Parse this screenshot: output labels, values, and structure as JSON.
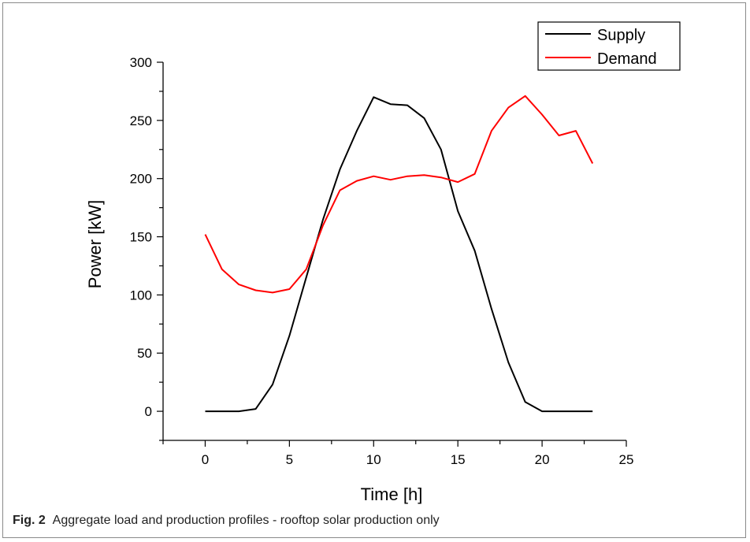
{
  "chart_data": {
    "type": "line",
    "title": "",
    "xlabel": "Time [h]",
    "ylabel": "Power [kW]",
    "xlim": [
      -2.5,
      25
    ],
    "ylim": [
      -25,
      300
    ],
    "xticks": [
      0,
      5,
      10,
      15,
      20,
      25
    ],
    "yticks": [
      0,
      50,
      100,
      150,
      200,
      250,
      300
    ],
    "grid": false,
    "legend_position": "top-right",
    "x": [
      0,
      1,
      2,
      3,
      4,
      5,
      6,
      7,
      8,
      9,
      10,
      11,
      12,
      13,
      14,
      15,
      16,
      17,
      18,
      19,
      20,
      21,
      22,
      23
    ],
    "series": [
      {
        "name": "Supply",
        "color": "#000000",
        "values": [
          0,
          0,
          0,
          2,
          23,
          65,
          115,
          165,
          208,
          241,
          270,
          264,
          263,
          252,
          225,
          172,
          138,
          88,
          42,
          8,
          0,
          0,
          0,
          0
        ]
      },
      {
        "name": "Demand",
        "color": "#ff0000",
        "values": [
          152,
          122,
          109,
          104,
          102,
          105,
          122,
          160,
          190,
          198,
          202,
          199,
          202,
          203,
          201,
          197,
          204,
          241,
          261,
          271,
          255,
          237,
          241,
          213
        ]
      }
    ]
  },
  "caption": {
    "label": "Fig. 2",
    "text": "Aggregate load and production profiles - rooftop solar production only"
  }
}
